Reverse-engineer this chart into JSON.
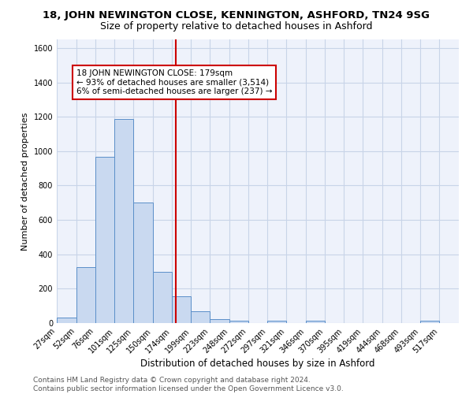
{
  "title": "18, JOHN NEWINGTON CLOSE, KENNINGTON, ASHFORD, TN24 9SG",
  "subtitle": "Size of property relative to detached houses in Ashford",
  "xlabel": "Distribution of detached houses by size in Ashford",
  "ylabel": "Number of detached properties",
  "bin_labels": [
    "27sqm",
    "52sqm",
    "76sqm",
    "101sqm",
    "125sqm",
    "150sqm",
    "174sqm",
    "199sqm",
    "223sqm",
    "248sqm",
    "272sqm",
    "297sqm",
    "321sqm",
    "346sqm",
    "370sqm",
    "395sqm",
    "419sqm",
    "444sqm",
    "468sqm",
    "493sqm",
    "517sqm"
  ],
  "bin_edges": [
    27,
    52,
    76,
    101,
    125,
    150,
    174,
    199,
    223,
    248,
    272,
    297,
    321,
    346,
    370,
    395,
    419,
    444,
    468,
    493,
    517,
    542
  ],
  "bar_heights": [
    30,
    325,
    968,
    1185,
    700,
    300,
    155,
    70,
    25,
    15,
    0,
    15,
    0,
    15,
    0,
    0,
    0,
    0,
    0,
    15,
    0
  ],
  "bar_color": "#c9d9f0",
  "bar_edge_color": "#5b8fc9",
  "property_value": 179,
  "vline_color": "#cc0000",
  "annotation_line1": "18 JOHN NEWINGTON CLOSE: 179sqm",
  "annotation_line2": "← 93% of detached houses are smaller (3,514)",
  "annotation_line3": "6% of semi-detached houses are larger (237) →",
  "annotation_box_color": "#ffffff",
  "annotation_box_edge": "#cc0000",
  "ylim": [
    0,
    1650
  ],
  "yticks": [
    0,
    200,
    400,
    600,
    800,
    1000,
    1200,
    1400,
    1600
  ],
  "grid_color": "#c8d4e8",
  "bg_color": "#eef2fb",
  "footer_text": "Contains HM Land Registry data © Crown copyright and database right 2024.\nContains public sector information licensed under the Open Government Licence v3.0.",
  "title_fontsize": 9.5,
  "subtitle_fontsize": 9,
  "xlabel_fontsize": 8.5,
  "ylabel_fontsize": 8,
  "tick_fontsize": 7,
  "annotation_fontsize": 7.5,
  "footer_fontsize": 6.5
}
